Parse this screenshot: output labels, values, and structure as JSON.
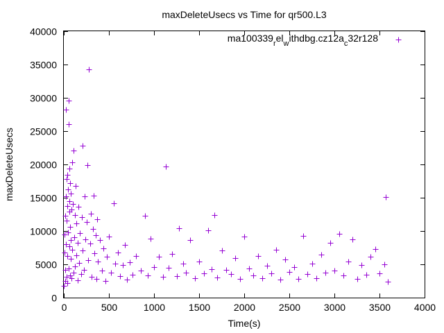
{
  "chart_data": {
    "type": "scatter",
    "title": "maxDeleteUsecs vs Time for qr500.L3",
    "xlabel": "Time(s)",
    "ylabel": "maxDeleteUsecs",
    "xlim": [
      0,
      4000
    ],
    "ylim": [
      0,
      40000
    ],
    "xticks": [
      0,
      500,
      1000,
      1500,
      2000,
      2500,
      3000,
      3500,
      4000
    ],
    "yticks": [
      0,
      5000,
      10000,
      15000,
      20000,
      25000,
      30000,
      35000,
      40000
    ],
    "xtick_labels": [
      "0",
      "500",
      "1000",
      "1500",
      "2000",
      "2500",
      "3000",
      "3500",
      "4000"
    ],
    "ytick_labels": [
      "0",
      "5000",
      "10000",
      "15000",
      "20000",
      "25000",
      "30000",
      "35000",
      "40000"
    ],
    "grid": false,
    "legend_position": "top-right",
    "marker": "plus",
    "series": [
      {
        "name": "ma100339_rel_withdbg.cz12a_c32r128",
        "color": "#9400d3",
        "points": [
          [
            0,
            1800
          ],
          [
            5,
            6800
          ],
          [
            10,
            9500
          ],
          [
            12,
            4200
          ],
          [
            15,
            12300
          ],
          [
            18,
            2500
          ],
          [
            20,
            15200
          ],
          [
            22,
            8000
          ],
          [
            25,
            28200
          ],
          [
            28,
            3100
          ],
          [
            30,
            17800
          ],
          [
            32,
            11600
          ],
          [
            35,
            6200
          ],
          [
            38,
            18400
          ],
          [
            40,
            13800
          ],
          [
            42,
            2200
          ],
          [
            45,
            16300
          ],
          [
            48,
            9800
          ],
          [
            50,
            29600
          ],
          [
            52,
            4400
          ],
          [
            55,
            26000
          ],
          [
            58,
            14500
          ],
          [
            60,
            7700
          ],
          [
            62,
            19400
          ],
          [
            65,
            12900
          ],
          [
            68,
            3300
          ],
          [
            70,
            17200
          ],
          [
            72,
            10600
          ],
          [
            75,
            5800
          ],
          [
            78,
            15600
          ],
          [
            80,
            8600
          ],
          [
            85,
            13200
          ],
          [
            88,
            2900
          ],
          [
            90,
            20300
          ],
          [
            95,
            7200
          ],
          [
            100,
            14100
          ],
          [
            105,
            3800
          ],
          [
            110,
            22100
          ],
          [
            115,
            9100
          ],
          [
            120,
            12400
          ],
          [
            125,
            4700
          ],
          [
            130,
            16800
          ],
          [
            135,
            6400
          ],
          [
            140,
            11100
          ],
          [
            150,
            8200
          ],
          [
            155,
            2600
          ],
          [
            160,
            13600
          ],
          [
            170,
            5200
          ],
          [
            180,
            9700
          ],
          [
            190,
            3500
          ],
          [
            200,
            12100
          ],
          [
            205,
            7100
          ],
          [
            210,
            22800
          ],
          [
            220,
            4200
          ],
          [
            230,
            15200
          ],
          [
            240,
            8800
          ],
          [
            250,
            11400
          ],
          [
            260,
            19900
          ],
          [
            270,
            5600
          ],
          [
            280,
            34300
          ],
          [
            290,
            8100
          ],
          [
            300,
            12600
          ],
          [
            310,
            3100
          ],
          [
            320,
            10300
          ],
          [
            330,
            15300
          ],
          [
            340,
            6700
          ],
          [
            350,
            9400
          ],
          [
            360,
            2800
          ],
          [
            370,
            11800
          ],
          [
            380,
            5400
          ],
          [
            400,
            8600
          ],
          [
            420,
            4100
          ],
          [
            440,
            7400
          ],
          [
            460,
            2500
          ],
          [
            480,
            6100
          ],
          [
            500,
            9200
          ],
          [
            520,
            3800
          ],
          [
            550,
            14200
          ],
          [
            570,
            5100
          ],
          [
            600,
            6800
          ],
          [
            620,
            3200
          ],
          [
            650,
            4900
          ],
          [
            680,
            7900
          ],
          [
            700,
            2700
          ],
          [
            730,
            5300
          ],
          [
            760,
            3400
          ],
          [
            800,
            6200
          ],
          [
            850,
            4100
          ],
          [
            900,
            12300
          ],
          [
            930,
            3300
          ],
          [
            960,
            8900
          ],
          [
            1000,
            4600
          ],
          [
            1050,
            6100
          ],
          [
            1100,
            3100
          ],
          [
            1130,
            19700
          ],
          [
            1160,
            4500
          ],
          [
            1200,
            6600
          ],
          [
            1250,
            3200
          ],
          [
            1280,
            10400
          ],
          [
            1320,
            5100
          ],
          [
            1350,
            3800
          ],
          [
            1400,
            8600
          ],
          [
            1450,
            2900
          ],
          [
            1500,
            5400
          ],
          [
            1550,
            3600
          ],
          [
            1600,
            10100
          ],
          [
            1640,
            4300
          ],
          [
            1670,
            12400
          ],
          [
            1700,
            3000
          ],
          [
            1750,
            7100
          ],
          [
            1800,
            4200
          ],
          [
            1850,
            3500
          ],
          [
            1900,
            5900
          ],
          [
            1950,
            2800
          ],
          [
            2000,
            9200
          ],
          [
            2050,
            4400
          ],
          [
            2100,
            3300
          ],
          [
            2150,
            6300
          ],
          [
            2200,
            2900
          ],
          [
            2250,
            4800
          ],
          [
            2300,
            3600
          ],
          [
            2350,
            7200
          ],
          [
            2400,
            2700
          ],
          [
            2450,
            5700
          ],
          [
            2500,
            3900
          ],
          [
            2550,
            4600
          ],
          [
            2600,
            2800
          ],
          [
            2650,
            9300
          ],
          [
            2700,
            3500
          ],
          [
            2750,
            5100
          ],
          [
            2800,
            2900
          ],
          [
            2850,
            6500
          ],
          [
            2900,
            3700
          ],
          [
            2950,
            8200
          ],
          [
            3000,
            4100
          ],
          [
            3050,
            9600
          ],
          [
            3100,
            3300
          ],
          [
            3150,
            5400
          ],
          [
            3200,
            8700
          ],
          [
            3250,
            2800
          ],
          [
            3300,
            4900
          ],
          [
            3350,
            3400
          ],
          [
            3400,
            6100
          ],
          [
            3450,
            7300
          ],
          [
            3500,
            3600
          ],
          [
            3550,
            5000
          ],
          [
            3570,
            15100
          ],
          [
            3590,
            2400
          ]
        ]
      }
    ]
  }
}
